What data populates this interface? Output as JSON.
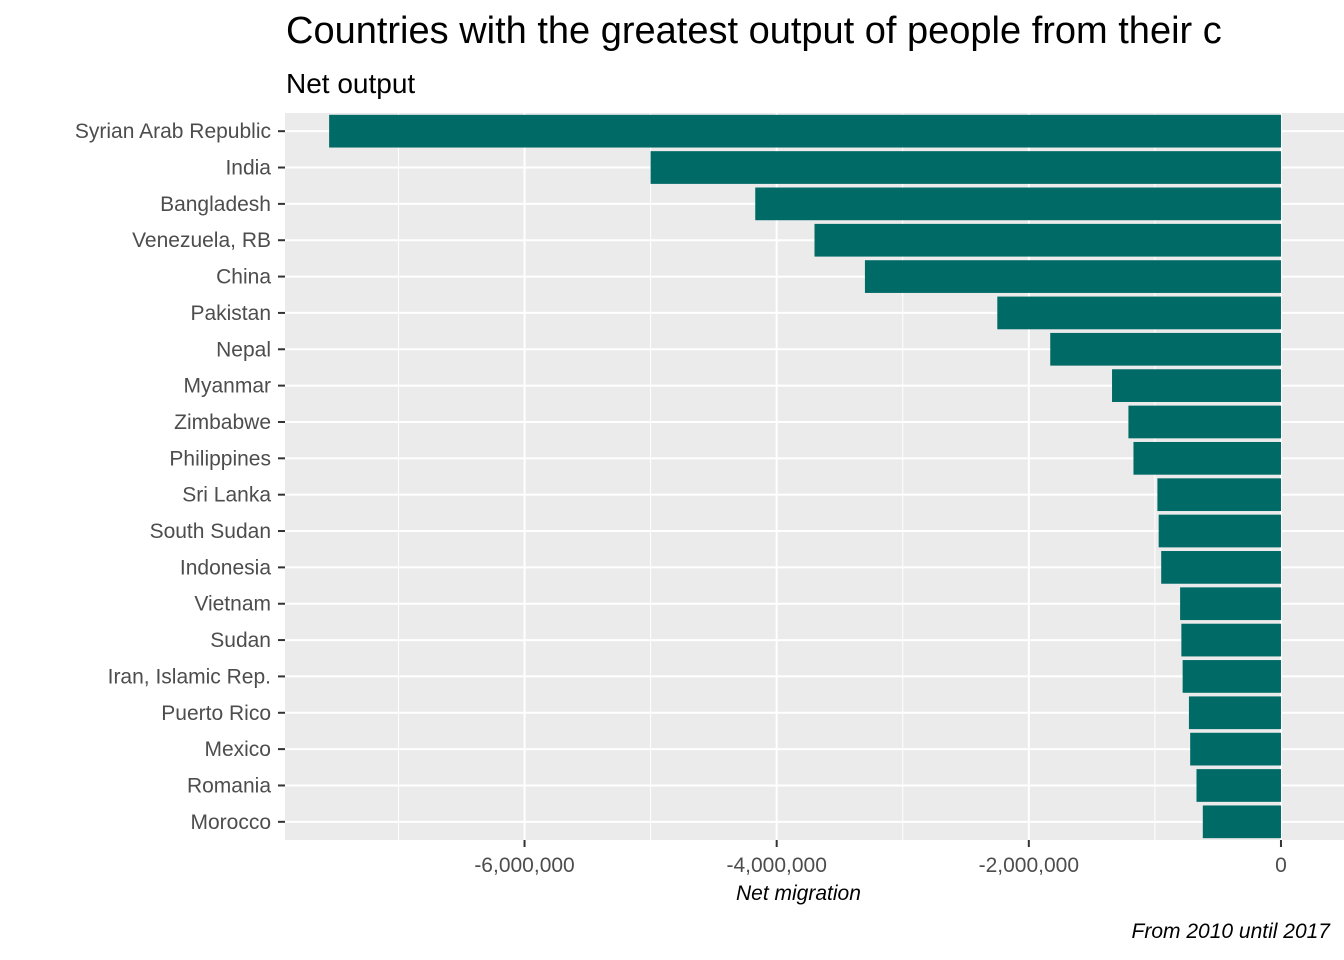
{
  "chart_data": {
    "type": "bar",
    "orientation": "horizontal",
    "title": "Countries with the greatest output of people from their c",
    "subtitle": "Net output",
    "xlabel": "Net migration",
    "caption": "From 2010 until 2017",
    "categories": [
      "Syrian Arab Republic",
      "India",
      "Bangladesh",
      "Venezuela, RB",
      "China",
      "Pakistan",
      "Nepal",
      "Myanmar",
      "Zimbabwe",
      "Philippines",
      "Sri Lanka",
      "South Sudan",
      "Indonesia",
      "Vietnam",
      "Sudan",
      "Iran, Islamic Rep.",
      "Puerto Rico",
      "Mexico",
      "Romania",
      "Morocco"
    ],
    "values": [
      -7550000,
      -5000000,
      -4170000,
      -3700000,
      -3300000,
      -2250000,
      -1830000,
      -1340000,
      -1210000,
      -1170000,
      -980000,
      -970000,
      -950000,
      -800000,
      -790000,
      -780000,
      -730000,
      -720000,
      -670000,
      -620000
    ],
    "xticks": [
      -6000000,
      -4000000,
      -2000000,
      0
    ],
    "xtick_labels": [
      "-6,000,000",
      "-4,000,000",
      "-2,000,000",
      "0"
    ],
    "xlim": [
      -7900000,
      500000
    ],
    "bar_color": "#006a67",
    "panel_color": "#ebebeb",
    "grid": true
  }
}
